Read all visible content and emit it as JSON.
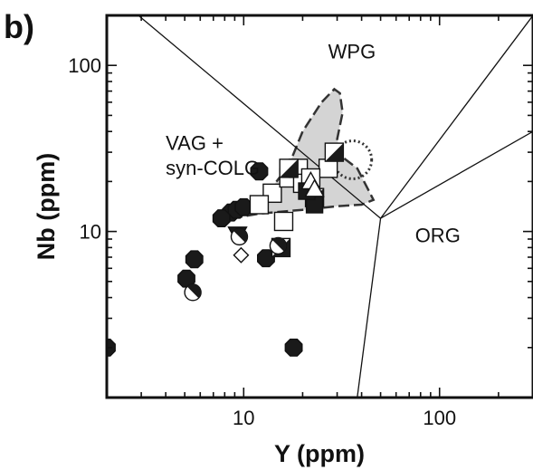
{
  "chart_data": {
    "type": "scatter",
    "panel_label": "b)",
    "xlabel": "Y (ppm)",
    "ylabel": "Nb (ppm)",
    "xscale": "log",
    "yscale": "log",
    "xlim": [
      2,
      300
    ],
    "ylim": [
      1,
      200
    ],
    "x_ticks": [
      {
        "value": 10,
        "label": "10"
      },
      {
        "value": 100,
        "label": "100"
      }
    ],
    "y_ticks": [
      {
        "value": 10,
        "label": "10"
      },
      {
        "value": 100,
        "label": "100"
      }
    ],
    "field_labels": [
      {
        "text": "WPG",
        "x": 27,
        "y": 110
      },
      {
        "text": "VAG +",
        "x": 4.0,
        "y": 31
      },
      {
        "text": "syn-COLG",
        "x": 4.0,
        "y": 22
      },
      {
        "text": "ORG",
        "x": 75,
        "y": 8.6
      }
    ],
    "boundaries": [
      {
        "from": [
          2.9,
          200
        ],
        "to": [
          50,
          12
        ]
      },
      {
        "from": [
          50,
          12
        ],
        "to": [
          300,
          200
        ]
      },
      {
        "from": [
          50,
          12
        ],
        "to": [
          300,
          40
        ]
      },
      {
        "from": [
          50,
          12
        ],
        "to": [
          38,
          1
        ]
      }
    ],
    "shaded_field": [
      [
        7,
        11.5
      ],
      [
        10,
        13
      ],
      [
        13,
        16.5
      ],
      [
        17,
        25
      ],
      [
        20,
        40
      ],
      [
        25,
        60
      ],
      [
        29,
        72
      ],
      [
        31,
        68
      ],
      [
        32,
        52
      ],
      [
        30,
        36
      ],
      [
        32,
        28
      ],
      [
        38,
        24
      ],
      [
        46,
        15.5
      ],
      [
        40,
        14.5
      ],
      [
        30,
        14.2
      ],
      [
        20,
        13.5
      ],
      [
        12,
        12.8
      ],
      [
        7,
        11.5
      ]
    ],
    "dotted_circle": {
      "center": [
        36,
        27
      ],
      "note": "dotted outline"
    },
    "series": [
      {
        "marker": "filled-octagon",
        "points": [
          [
            12,
            23
          ],
          [
            8.6,
            13
          ],
          [
            9.2,
            13.5
          ],
          [
            10,
            14
          ],
          [
            7.7,
            12
          ],
          [
            5.6,
            6.8
          ],
          [
            5.1,
            5.2
          ],
          [
            2,
            2
          ],
          [
            18,
            2
          ],
          [
            13,
            6.9
          ]
        ]
      },
      {
        "marker": "open-square",
        "points": [
          [
            14,
            17
          ],
          [
            17,
            21
          ],
          [
            19,
            24
          ],
          [
            27,
            24
          ],
          [
            16,
            11.5
          ],
          [
            12,
            14.5
          ],
          [
            20,
            19.5
          ],
          [
            22,
            21
          ]
        ]
      },
      {
        "marker": "half-filled-square",
        "points": [
          [
            17,
            24
          ],
          [
            29,
            30
          ],
          [
            23,
            16
          ],
          [
            15.5,
            8
          ]
        ]
      },
      {
        "marker": "filled-square",
        "points": [
          [
            23,
            14.5
          ],
          [
            21,
            17.5
          ]
        ]
      },
      {
        "marker": "open-triangle",
        "points": [
          [
            22,
            20
          ],
          [
            23,
            18
          ]
        ]
      },
      {
        "marker": "filled-triangle-down",
        "points": [
          [
            9.3,
            9.6
          ]
        ]
      },
      {
        "marker": "half-filled-circle",
        "points": [
          [
            5.5,
            4.3
          ],
          [
            9.5,
            9.3
          ],
          [
            15,
            8.2
          ]
        ]
      },
      {
        "marker": "open-diamond",
        "points": [
          [
            9.7,
            7.2
          ]
        ]
      }
    ]
  }
}
